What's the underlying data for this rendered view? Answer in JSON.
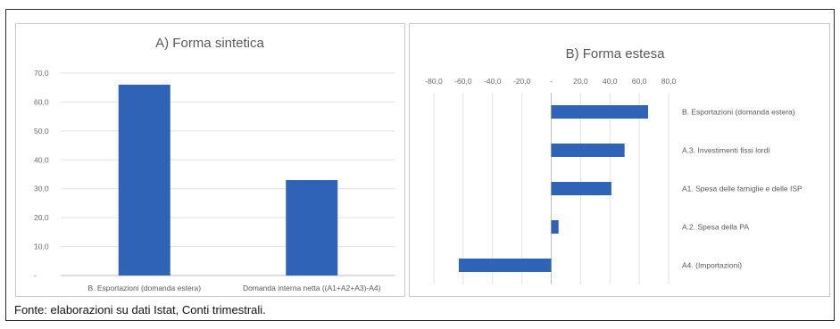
{
  "source_note": "Fonte: elaborazioni su dati Istat, Conti trimestrali.",
  "colors": {
    "bar": "#2e63b8",
    "grid": "#e2e2e2",
    "axis": "#bfbfbf"
  },
  "chart_data": [
    {
      "type": "bar",
      "title": "A) Forma sintetica",
      "categories": [
        "B. Esportazioni (domanda estera)",
        "Domanda interna netta ((A1+A2+A3)-A4)"
      ],
      "values": [
        66.0,
        33.0
      ],
      "ylim": [
        0,
        70
      ],
      "yticks": [
        0,
        10,
        20,
        30,
        40,
        50,
        60,
        70
      ],
      "ytick_labels": [
        "-",
        "10,0",
        "20,0",
        "30,0",
        "40,0",
        "50,0",
        "60,0",
        "70,0"
      ],
      "xlabel": "",
      "ylabel": "",
      "grid": true
    },
    {
      "type": "bar",
      "orientation": "horizontal",
      "title": "B) Forma estesa",
      "categories": [
        "B. Esportazioni (domanda estera)",
        "A.3. Investimenti fissi lordi",
        "A1. Spesa delle famiglie e delle ISP",
        "A.2. Spesa della PA",
        "A4. (Importazioni)"
      ],
      "values": [
        66.0,
        50.0,
        41.0,
        5.0,
        -63.0
      ],
      "xlim": [
        -80,
        80
      ],
      "xticks": [
        -80,
        -60,
        -40,
        -20,
        0,
        20,
        40,
        60,
        80
      ],
      "xtick_labels": [
        "-80,0",
        "-60,0",
        "-40,0",
        "-20,0",
        "-",
        "20,0",
        "40,0",
        "60,0",
        "80,0"
      ],
      "xtick_position": "top",
      "xlabel": "",
      "ylabel": "",
      "grid": true
    }
  ]
}
